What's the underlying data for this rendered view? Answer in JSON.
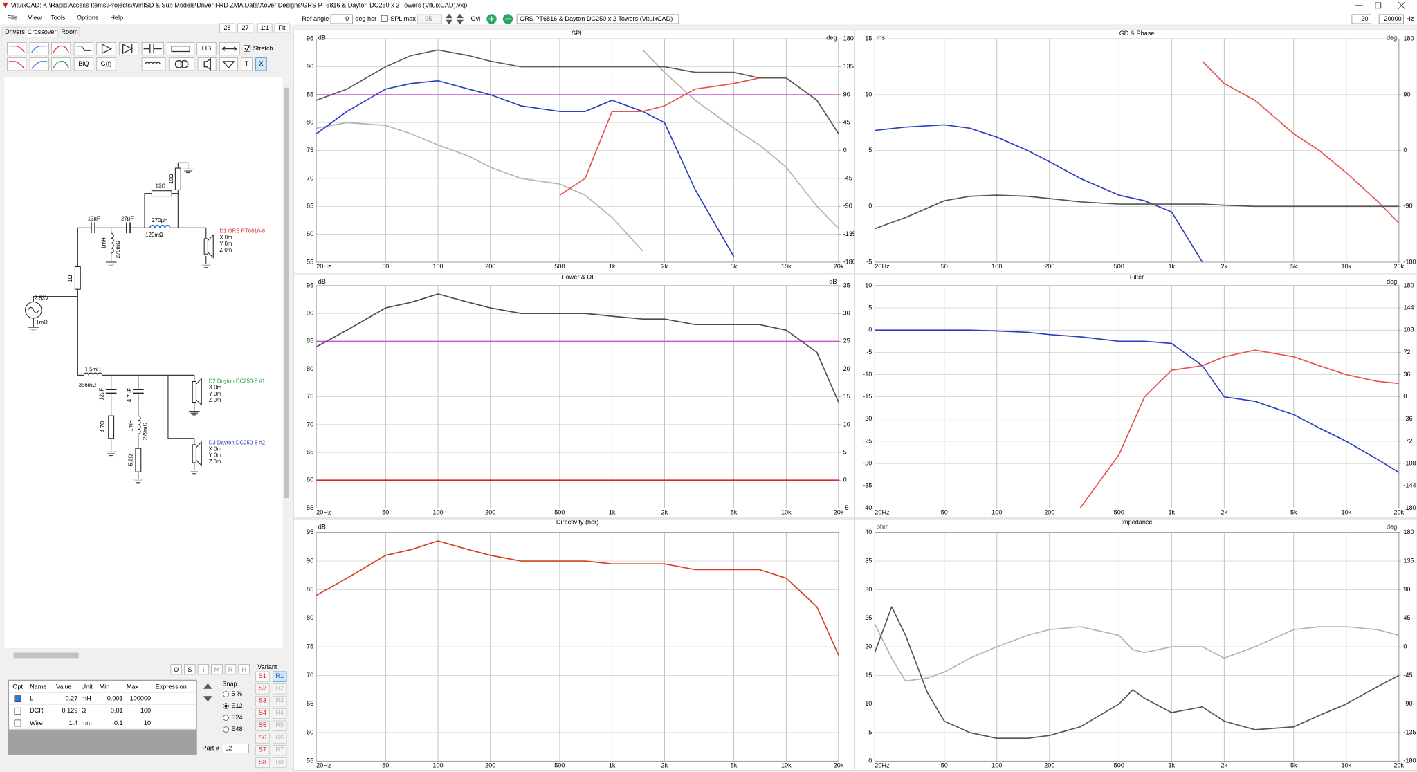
{
  "window": {
    "title": "VituixCAD: K:\\Rapid Access Items\\Projects\\WinISD & Sub Models\\Driver FRD ZMA Data\\Xover Designs\\GRS PT6816 & Dayton DC250 x 2 Towers (VituixCAD).vxp"
  },
  "menu": [
    "File",
    "View",
    "Tools",
    "Options",
    "Help"
  ],
  "toolbar": {
    "zoom_a": "28",
    "zoom_b": "27",
    "one_to_one": "1:1",
    "fit": "Fit",
    "ref_angle_label": "Ref angle",
    "ref_angle": "0",
    "ref_angle_unit": "deg hor",
    "spl_max_label": "SPL max",
    "spl_max": "95",
    "ovl": "Ovl",
    "project": "GRS PT6816 & Dayton DC250 x 2 Towers (VituixCAD)",
    "f_min": "20",
    "f_max": "20000",
    "f_unit": "Hz"
  },
  "tabs": [
    "Drivers",
    "Crossover",
    "Room"
  ],
  "tool_buttons": {
    "lib": "LIB",
    "stretch": "Stretch",
    "stretch_checked": true,
    "biq": "BiQ",
    "gf": "G(f)",
    "t": "T",
    "x": "X"
  },
  "schematic": {
    "parts": [
      "12µF",
      "27µF",
      "270µH",
      "129mΩ",
      "12Ω",
      "10Ω",
      "1mH",
      "279mΩ",
      "1Ω",
      "2.83V",
      "1mΩ",
      "1.5mH",
      "356mΩ",
      "12µF",
      "4.7µF",
      "4.7Ω",
      "1mH",
      "279mΩ",
      "5.6Ω"
    ],
    "drivers": [
      {
        "name": "D1 GRS PT6816-8",
        "coords": [
          "X 0m",
          "Y 0m",
          "Z 0m"
        ]
      },
      {
        "name": "D2 Dayton DC250-8 #1",
        "coords": [
          "X 0m",
          "Y 0m",
          "Z 0m"
        ]
      },
      {
        "name": "D3 Dayton DC250-8 #2",
        "coords": [
          "X 0m",
          "Y 0m",
          "Z 0m"
        ]
      }
    ]
  },
  "part_buttons": [
    "O",
    "S",
    "I",
    "M",
    "R",
    "H"
  ],
  "table": {
    "headers": [
      "Opt",
      "Name",
      "Value",
      "Unit",
      "Min",
      "Max",
      "Expression"
    ],
    "rows": [
      [
        "L",
        "0.27",
        "mH",
        "0.001",
        "100000"
      ],
      [
        "DCR",
        "0.129",
        "Ω",
        "0.01",
        "100"
      ],
      [
        "Wire",
        "1.4",
        "mm",
        "0.1",
        "10"
      ]
    ]
  },
  "snap": {
    "label": "Snap",
    "options": [
      "5 %",
      "E12",
      "E24",
      "E48"
    ],
    "selected": 1
  },
  "part": {
    "label": "Part #",
    "value": "L2"
  },
  "variant": {
    "label": "Variant",
    "s": [
      "S1",
      "S2",
      "S3",
      "S4",
      "S5",
      "S6",
      "S7",
      "S8"
    ],
    "r": [
      "R1",
      "R2",
      "R3",
      "R4",
      "R5",
      "R6",
      "R7",
      "R8"
    ],
    "active": 0
  },
  "charts": [
    {
      "type": "line",
      "title": "SPL",
      "y_label": "dB",
      "y2_label": "deg",
      "x_scale": "log",
      "grid": true,
      "x": [
        20,
        30,
        50,
        70,
        100,
        150,
        200,
        300,
        500,
        700,
        1000,
        1500,
        2000,
        3000,
        5000,
        7000,
        10000,
        15000,
        20000
      ],
      "xlim": [
        20,
        20000
      ],
      "xticks": [
        {
          "value": 20,
          "label": "20Hz"
        },
        50,
        100,
        200,
        500,
        {
          "value": 1000,
          "label": "1k"
        },
        {
          "value": 2000,
          "label": "2k"
        },
        {
          "value": 5000,
          "label": "5k"
        },
        {
          "value": 10000,
          "label": "10k"
        },
        {
          "value": 20000,
          "label": "20k"
        }
      ],
      "ylim": [
        55,
        95
      ],
      "yticks": [
        55,
        60,
        65,
        70,
        75,
        80,
        85,
        90,
        95
      ],
      "y2lim": [
        -180,
        180
      ],
      "y2ticks": [
        -180,
        -135,
        -90,
        -45,
        0,
        45,
        90,
        135,
        180
      ],
      "reference_lines": [
        {
          "value": 85,
          "color": "#d24fd2"
        }
      ],
      "series": [
        {
          "color": "#b4b4b4",
          "values": [
            79,
            80,
            79.5,
            78,
            76,
            74,
            72,
            70,
            69,
            67,
            63,
            57,
            null,
            null,
            null,
            null,
            null,
            null,
            null
          ]
        },
        {
          "color": "#b4b4b4",
          "values": [
            null,
            null,
            null,
            null,
            null,
            null,
            null,
            null,
            null,
            null,
            null,
            93,
            89,
            84,
            79,
            76,
            72,
            65,
            61
          ]
        },
        {
          "color": "#2c3fbf",
          "values": [
            78,
            82,
            86,
            87,
            87.5,
            86,
            85,
            83,
            82,
            82,
            84,
            82,
            80,
            68,
            56,
            null,
            null,
            null,
            null
          ]
        },
        {
          "color": "#e8524f",
          "values": [
            null,
            null,
            null,
            null,
            null,
            null,
            null,
            null,
            67,
            70,
            82,
            82,
            83,
            86,
            87,
            88,
            88,
            84,
            78
          ]
        },
        {
          "color": "#5d5c4e",
          "values": [
            84,
            86,
            90,
            92,
            93,
            92,
            91,
            90,
            90,
            90,
            90,
            90,
            90,
            89,
            89,
            88,
            88,
            84,
            78
          ]
        }
      ]
    },
    {
      "type": "line",
      "title": "GD & Phase",
      "y_label": "ms",
      "y2_label": "deg",
      "x_scale": "log",
      "grid": true,
      "x": [
        20,
        30,
        50,
        70,
        100,
        150,
        200,
        300,
        500,
        700,
        1000,
        1500,
        2000,
        3000,
        5000,
        7000,
        10000,
        15000,
        20000
      ],
      "xlim": [
        20,
        20000
      ],
      "xticks": [
        {
          "value": 20,
          "label": "20Hz"
        },
        50,
        100,
        200,
        500,
        {
          "value": 1000,
          "label": "1k"
        },
        {
          "value": 2000,
          "label": "2k"
        },
        {
          "value": 5000,
          "label": "5k"
        },
        {
          "value": 10000,
          "label": "10k"
        },
        {
          "value": 20000,
          "label": "20k"
        }
      ],
      "ylim": [
        -5,
        15
      ],
      "yticks": [
        -5,
        0,
        5,
        10,
        15
      ],
      "y2lim": [
        -180,
        180
      ],
      "y2ticks": [
        -180,
        -90,
        0,
        90,
        180
      ],
      "series": [
        {
          "color": "#e8524f",
          "values": [
            null,
            null,
            null,
            null,
            null,
            null,
            null,
            null,
            null,
            null,
            null,
            13,
            11,
            9.5,
            6.5,
            5,
            3,
            0.5,
            -1.5
          ]
        },
        {
          "color": "#2c3fbf",
          "values": [
            6.8,
            7.1,
            7.3,
            7,
            6.2,
            5,
            4,
            2.5,
            1,
            0.5,
            -0.5,
            -5,
            null,
            null,
            null,
            null,
            null,
            null,
            null
          ]
        },
        {
          "color": "#555555",
          "values": [
            -2,
            -1,
            0.5,
            0.9,
            1,
            0.9,
            0.7,
            0.4,
            0.2,
            0.2,
            0.2,
            0.2,
            0.1,
            0,
            0,
            0,
            0,
            0,
            0
          ]
        }
      ]
    },
    {
      "type": "line",
      "title": "Power & DI",
      "y_label": "dB",
      "y2_label": "dB",
      "x_scale": "log",
      "grid": true,
      "x": [
        20,
        30,
        50,
        70,
        100,
        150,
        200,
        300,
        500,
        700,
        1000,
        1500,
        2000,
        3000,
        5000,
        7000,
        10000,
        15000,
        20000
      ],
      "xlim": [
        20,
        20000
      ],
      "xticks": [
        {
          "value": 20,
          "label": "20Hz"
        },
        50,
        100,
        200,
        500,
        {
          "value": 1000,
          "label": "1k"
        },
        {
          "value": 2000,
          "label": "2k"
        },
        {
          "value": 5000,
          "label": "5k"
        },
        {
          "value": 10000,
          "label": "10k"
        },
        {
          "value": 20000,
          "label": "20k"
        }
      ],
      "ylim": [
        55,
        95
      ],
      "yticks": [
        55,
        60,
        65,
        70,
        75,
        80,
        85,
        90,
        95
      ],
      "y2lim": [
        -5,
        35
      ],
      "y2ticks": [
        -5,
        0,
        5,
        10,
        15,
        20,
        25,
        30,
        35
      ],
      "reference_lines": [
        {
          "value": 85,
          "color": "#d24fd2"
        }
      ],
      "series": [
        {
          "color": "#e02424",
          "axis": "y2",
          "values": [
            0,
            0,
            0,
            0,
            0,
            0,
            0,
            0,
            0,
            0,
            0,
            0,
            0,
            0,
            0,
            0,
            0,
            0,
            0
          ]
        },
        {
          "color": "#4b4b5c",
          "values": [
            84,
            87,
            91,
            92,
            93.5,
            92,
            91,
            90,
            90,
            90,
            89.5,
            89,
            89,
            88,
            88,
            88,
            87,
            83,
            74
          ]
        }
      ]
    },
    {
      "type": "line",
      "title": "Filter",
      "y2_label": "deg",
      "x_scale": "log",
      "grid": true,
      "x": [
        20,
        30,
        50,
        70,
        100,
        150,
        200,
        300,
        500,
        700,
        1000,
        1500,
        2000,
        3000,
        5000,
        7000,
        10000,
        15000,
        20000
      ],
      "xlim": [
        20,
        20000
      ],
      "xticks": [
        {
          "value": 20,
          "label": "20Hz"
        },
        50,
        100,
        200,
        500,
        {
          "value": 1000,
          "label": "1k"
        },
        {
          "value": 2000,
          "label": "2k"
        },
        {
          "value": 5000,
          "label": "5k"
        },
        {
          "value": 10000,
          "label": "10k"
        },
        {
          "value": 20000,
          "label": "20k"
        }
      ],
      "ylim": [
        -40,
        10
      ],
      "yticks": [
        -40,
        -35,
        -30,
        -25,
        -20,
        -15,
        -10,
        -5,
        0,
        5,
        10
      ],
      "y2lim": [
        -180,
        180
      ],
      "y2ticks": [
        -180,
        -144,
        -108,
        -72,
        -36,
        0,
        36,
        72,
        108,
        144,
        180
      ],
      "series": [
        {
          "color": "#e8524f",
          "values": [
            null,
            null,
            null,
            null,
            null,
            null,
            null,
            -40,
            -28,
            -15,
            -9,
            -8,
            -6,
            -4.5,
            -6,
            -8,
            -10,
            -11.5,
            -12
          ]
        },
        {
          "color": "#2c3fbf",
          "values": [
            0,
            0,
            0,
            0,
            -0.2,
            -0.5,
            -1,
            -1.5,
            -2.5,
            -2.5,
            -3,
            -8,
            -15,
            -16,
            -19,
            -22,
            -25,
            -29,
            -32
          ]
        }
      ]
    },
    {
      "type": "line",
      "title": "Directivity (hor)",
      "y_label": "dB",
      "x_scale": "log",
      "grid": true,
      "x": [
        20,
        30,
        50,
        70,
        100,
        150,
        200,
        300,
        500,
        700,
        1000,
        1500,
        2000,
        3000,
        5000,
        7000,
        10000,
        15000,
        20000
      ],
      "xlim": [
        20,
        20000
      ],
      "xticks": [
        {
          "value": 20,
          "label": "20Hz"
        },
        50,
        100,
        200,
        500,
        {
          "value": 1000,
          "label": "1k"
        },
        {
          "value": 2000,
          "label": "2k"
        },
        {
          "value": 5000,
          "label": "5k"
        },
        {
          "value": 10000,
          "label": "10k"
        },
        {
          "value": 20000,
          "label": "20k"
        }
      ],
      "ylim": [
        55,
        95
      ],
      "yticks": [
        55,
        60,
        65,
        70,
        75,
        80,
        85,
        90,
        95
      ],
      "series": [
        {
          "color": "#d2401c",
          "values": [
            84,
            87,
            91,
            92,
            93.5,
            92,
            91,
            90,
            90,
            90,
            89.5,
            89.5,
            89.5,
            88.5,
            88.5,
            88.5,
            87,
            82,
            73.5
          ]
        }
      ]
    },
    {
      "type": "line",
      "title": "Impedance",
      "y_label": "ohm",
      "y2_label": "deg",
      "x_scale": "log",
      "grid": true,
      "x": [
        20,
        25,
        30,
        40,
        50,
        70,
        100,
        150,
        200,
        300,
        500,
        600,
        700,
        1000,
        1500,
        2000,
        3000,
        5000,
        7000,
        10000,
        15000,
        20000
      ],
      "xlim": [
        20,
        20000
      ],
      "xticks": [
        {
          "value": 20,
          "label": "20Hz"
        },
        50,
        100,
        200,
        500,
        {
          "value": 1000,
          "label": "1k"
        },
        {
          "value": 2000,
          "label": "2k"
        },
        {
          "value": 5000,
          "label": "5k"
        },
        {
          "value": 10000,
          "label": "10k"
        },
        {
          "value": 20000,
          "label": "20k"
        }
      ],
      "ylim": [
        0,
        40
      ],
      "yticks": [
        0,
        5,
        10,
        15,
        20,
        25,
        30,
        35,
        40
      ],
      "y2lim": [
        -180,
        180
      ],
      "y2ticks": [
        -180,
        -135,
        -90,
        -45,
        0,
        45,
        90,
        135,
        180
      ],
      "series": [
        {
          "color": "#b4b4b4",
          "axis": "y2",
          "values": [
            36,
            -18,
            -54,
            -49,
            -40,
            -18,
            0,
            18,
            27,
            31.5,
            18,
            -4.5,
            -9,
            0,
            0,
            -18,
            0,
            27,
            31.5,
            31.5,
            27,
            18
          ]
        },
        {
          "color": "#555555",
          "values": [
            19,
            27,
            22,
            12,
            7,
            5,
            4,
            4,
            4.5,
            6,
            10,
            12.5,
            11,
            8.5,
            9.5,
            7,
            5.5,
            6,
            8,
            10,
            13,
            15
          ]
        }
      ]
    }
  ]
}
